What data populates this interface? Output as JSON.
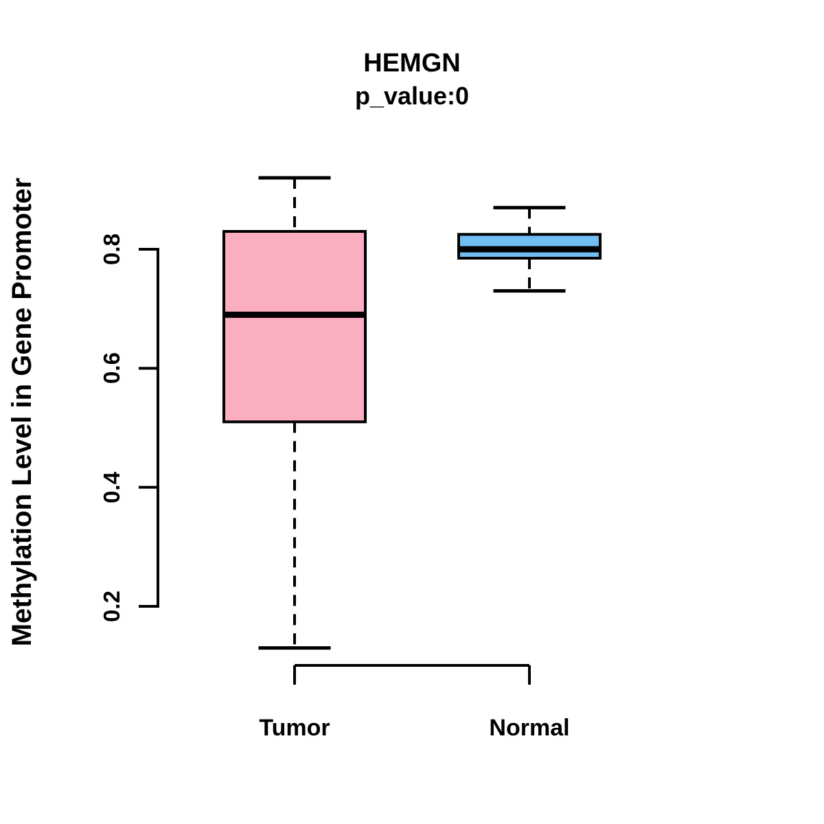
{
  "chart_data": {
    "type": "boxplot",
    "title": "HEMGN",
    "subtitle": "p_value:0",
    "xlabel": "",
    "ylabel": "Methylation Level in Gene Promoter",
    "categories": [
      "Tumor",
      "Normal"
    ],
    "yticks": [
      0.2,
      0.4,
      0.6,
      0.8
    ],
    "ytick_labels": [
      "0.2",
      "0.4",
      "0.6",
      "0.8"
    ],
    "ylim": [
      0.1,
      0.95
    ],
    "grid": false,
    "legend": "none",
    "background_color": "#FFFFFF",
    "line_color": "#000000",
    "whisker_style": "dashed",
    "series": [
      {
        "name": "Tumor",
        "fill": "#FCAEC1",
        "stats": {
          "whisker_low": 0.13,
          "q1": 0.51,
          "median": 0.69,
          "q3": 0.83,
          "whisker_high": 0.92
        }
      },
      {
        "name": "Normal",
        "fill": "#71BEF3",
        "stats": {
          "whisker_low": 0.73,
          "q1": 0.785,
          "median": 0.8,
          "q3": 0.825,
          "whisker_high": 0.87
        }
      }
    ]
  }
}
